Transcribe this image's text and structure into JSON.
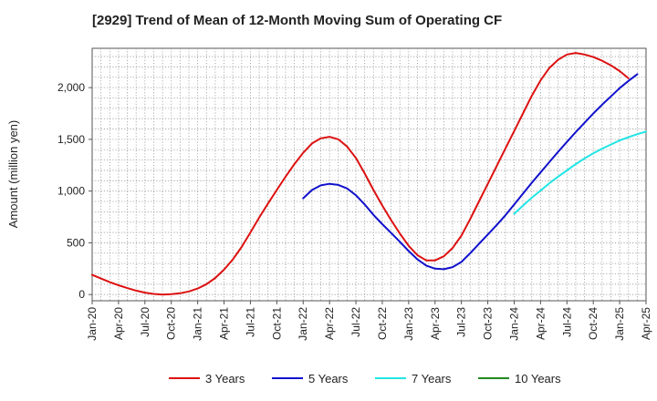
{
  "chart_data": {
    "type": "line",
    "title": "[2929]  Trend of Mean of 12-Month Moving Sum of Operating CF",
    "xlabel": "",
    "ylabel": "Amount (million yen)",
    "ylim": [
      -60,
      2380
    ],
    "yticks": [
      0,
      500,
      1000,
      1500,
      2000
    ],
    "ytick_labels": [
      "0",
      "500",
      "1,000",
      "1,500",
      "2,000"
    ],
    "xtick_labels": [
      "Jan-20",
      "Apr-20",
      "Jul-20",
      "Oct-20",
      "Jan-21",
      "Apr-21",
      "Jul-21",
      "Oct-21",
      "Jan-22",
      "Apr-22",
      "Jul-22",
      "Oct-22",
      "Jan-23",
      "Apr-23",
      "Jul-23",
      "Oct-23",
      "Jan-24",
      "Apr-24",
      "Jul-24",
      "Oct-24",
      "Jan-25",
      "Apr-25"
    ],
    "x_months_start": "Jan-20",
    "x_months_end": "Apr-25",
    "grid": true,
    "legend_position": "bottom",
    "series": [
      {
        "name": "3 Years",
        "color": "#dd1111",
        "start_month_index": 0,
        "values": [
          190,
          155,
          120,
          90,
          62,
          38,
          18,
          6,
          0,
          3,
          12,
          30,
          58,
          100,
          160,
          240,
          340,
          460,
          600,
          745,
          880,
          1010,
          1140,
          1260,
          1370,
          1460,
          1510,
          1525,
          1500,
          1430,
          1320,
          1170,
          1010,
          860,
          720,
          590,
          470,
          380,
          330,
          330,
          370,
          450,
          570,
          730,
          900,
          1070,
          1240,
          1410,
          1580,
          1750,
          1920,
          2070,
          2190,
          2270,
          2320,
          2335,
          2320,
          2295,
          2260,
          2215,
          2160,
          2090
        ]
      },
      {
        "name": "5 Years",
        "color": "#1111cc",
        "start_month_index": 24,
        "values": [
          930,
          1010,
          1055,
          1070,
          1060,
          1025,
          960,
          870,
          770,
          680,
          595,
          510,
          420,
          340,
          280,
          250,
          245,
          265,
          315,
          400,
          490,
          580,
          670,
          765,
          870,
          975,
          1080,
          1180,
          1280,
          1380,
          1475,
          1570,
          1660,
          1750,
          1835,
          1915,
          1995,
          2065,
          2130
        ]
      },
      {
        "name": "7 Years",
        "color": "#22e5e5",
        "start_month_index": 48,
        "values": [
          780,
          860,
          935,
          1005,
          1075,
          1140,
          1200,
          1260,
          1315,
          1365,
          1410,
          1450,
          1490,
          1520,
          1550,
          1575
        ]
      },
      {
        "name": "10 Years",
        "color": "#228822",
        "start_month_index": 0,
        "values": []
      }
    ]
  }
}
